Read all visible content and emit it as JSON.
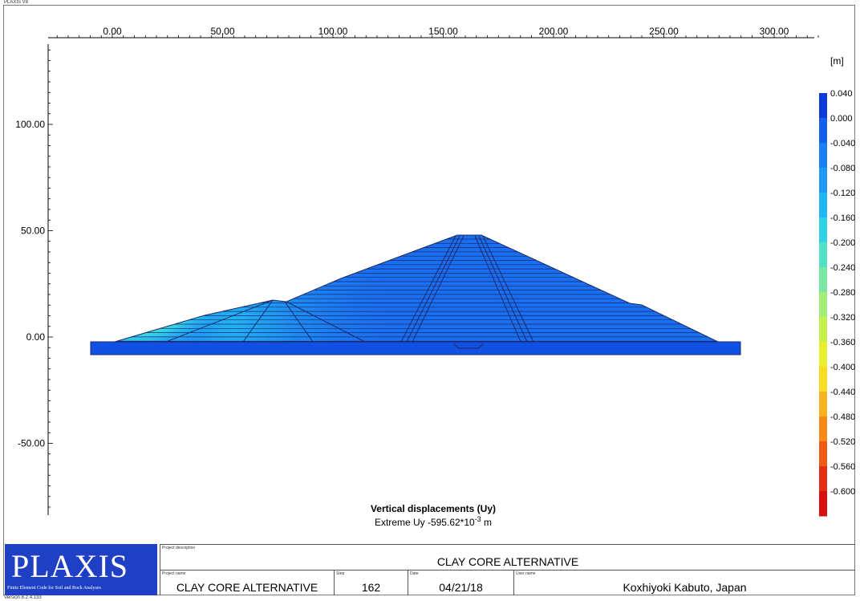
{
  "app": {
    "version_top": "PLAXIS V8",
    "version_bottom": "Version 8.2.4.133"
  },
  "axes": {
    "x_ticks": [
      "0.00",
      "50.00",
      "100.00",
      "150.00",
      "200.00",
      "250.00",
      "300.00"
    ],
    "y_ticks": [
      "100.00",
      "50.00",
      "0.00",
      "-50.00"
    ],
    "x_range": [
      -25,
      340
    ],
    "y_range": [
      -82,
      137
    ]
  },
  "legend": {
    "unit": "[m]",
    "labels": [
      "0.040",
      "0.000",
      "-0.040",
      "-0.080",
      "-0.120",
      "-0.160",
      "-0.200",
      "-0.240",
      "-0.280",
      "-0.320",
      "-0.360",
      "-0.400",
      "-0.440",
      "-0.480",
      "-0.520",
      "-0.560",
      "-0.600"
    ],
    "colors": [
      "#0a3bd8",
      "#1460ec",
      "#1a7ef4",
      "#1e99f6",
      "#22b6f4",
      "#30d2ea",
      "#52e0c8",
      "#7ae8a4",
      "#a2ee78",
      "#c6f04c",
      "#e6ee30",
      "#fadc22",
      "#fcb41e",
      "#f88a1a",
      "#f05a16",
      "#e42e14",
      "#d81010"
    ]
  },
  "caption": {
    "title": "Vertical displacements (Uy)",
    "extreme_prefix": "Extreme Uy -595.62*10",
    "exponent": "-3",
    "unit": " m"
  },
  "titleblock": {
    "logo": "PLAXIS",
    "logo_sub": "Finite Element Code for Soil and Rock Analyses",
    "description_label": "Project description",
    "description": "CLAY CORE ALTERNATIVE",
    "project_label": "Project name",
    "project": "CLAY CORE ALTERNATIVE",
    "step_label": "Step",
    "step": "162",
    "date_label": "Date",
    "date": "04/21/18",
    "user_label": "User name",
    "user": "Koxhiyoki Kabuto, Japan"
  }
}
